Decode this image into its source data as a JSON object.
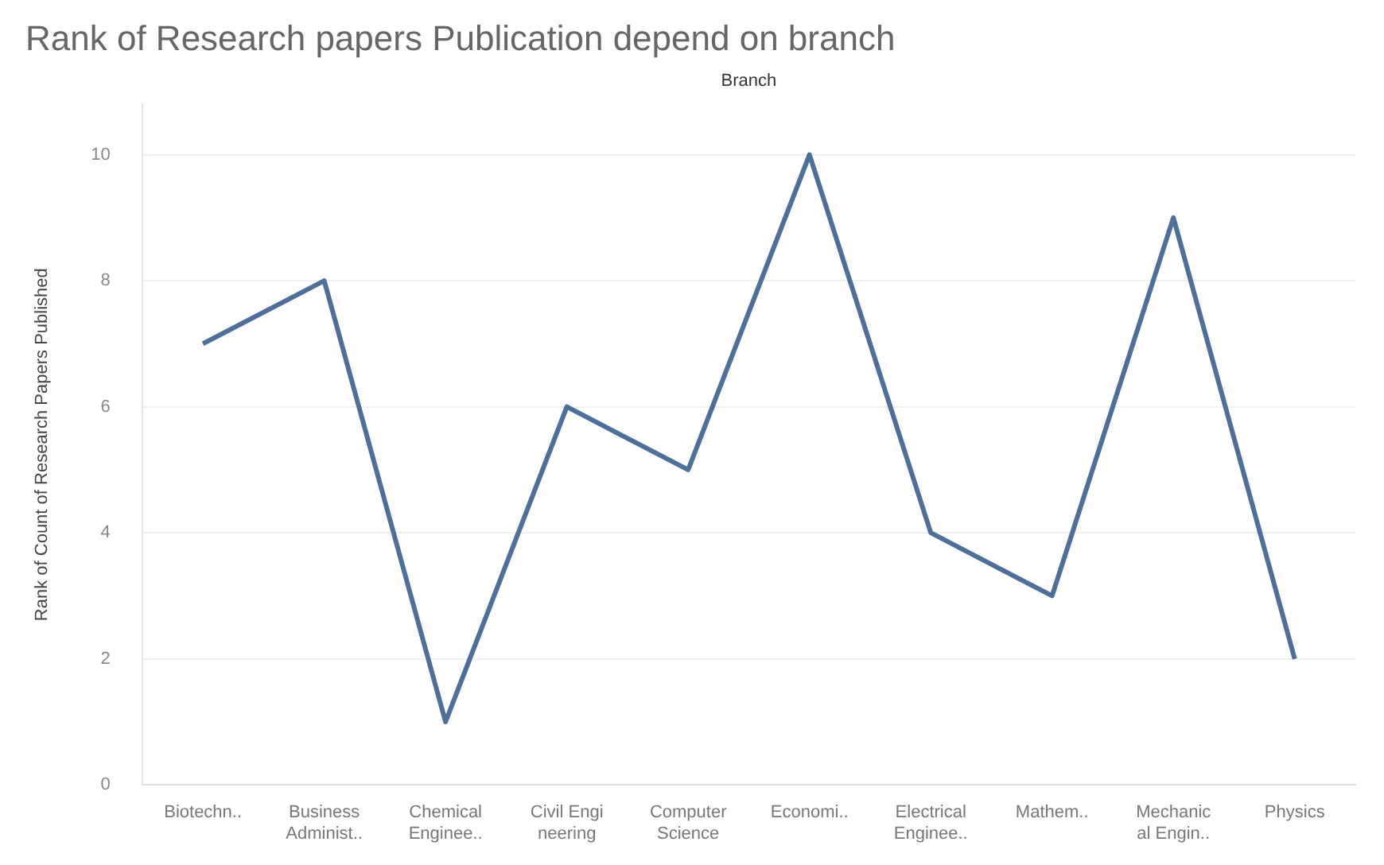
{
  "chart_data": {
    "type": "line",
    "title": "Rank of Research papers Publication depend on branch",
    "xlabel": "Branch",
    "ylabel": "Rank of Count of Research Papers Published",
    "categories": [
      "Biotechn..",
      "Business\nAdminist..",
      "Chemical\nEnginee..",
      "Civil Engi\nneering",
      "Computer\nScience",
      "Economi..",
      "Electrical\nEnginee..",
      "Mathem..",
      "Mechanic\nal Engin..",
      "Physics"
    ],
    "series": [
      {
        "color": "#4e6f9a",
        "values": [
          7,
          8,
          1,
          6,
          5,
          10,
          4,
          3,
          9,
          2
        ]
      }
    ],
    "ylim": [
      0,
      10.8
    ],
    "yticks": [
      0,
      2,
      4,
      6,
      8,
      10
    ],
    "grid": "y",
    "legend": false,
    "marker": "none",
    "line_style": "solid"
  }
}
